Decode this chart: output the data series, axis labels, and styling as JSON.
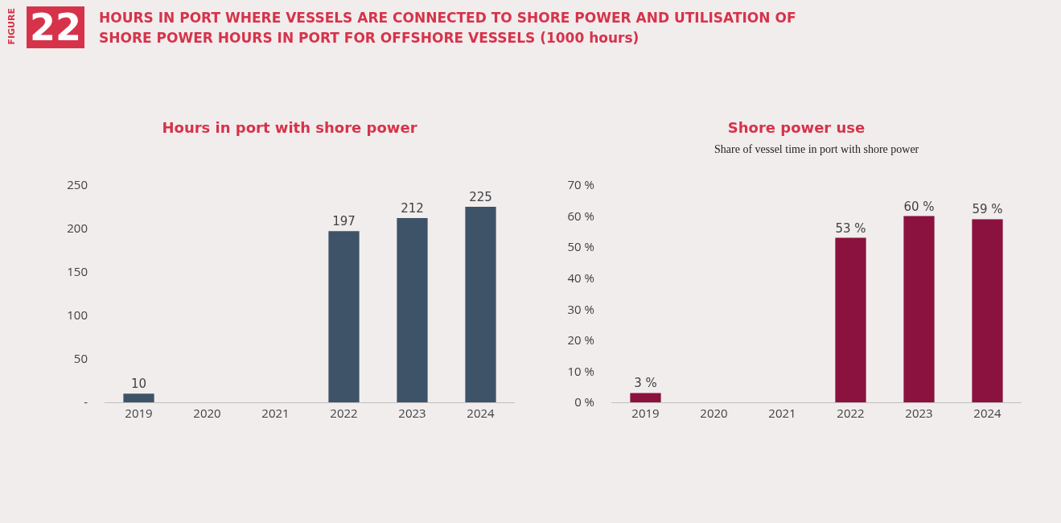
{
  "chart_data": [
    {
      "type": "bar",
      "title": "Hours in port with shore power",
      "annotations": [
        "FIGURE",
        "22",
        "HOURS IN PORT WHERE VESSELS ARE CONNECTED TO SHORE POWER AND UTILISATION OF SHORE POWER HOURS IN PORT FOR OFFSHORE VESSELS (1000 hours)"
      ],
      "categories": [
        "2019",
        "2020",
        "2021",
        "2022",
        "2023",
        "2024"
      ],
      "values": [
        10,
        null,
        null,
        197,
        212,
        225
      ],
      "color": "#3e5368",
      "data_labels": true,
      "ylim": [
        0,
        250
      ],
      "yticks": [
        {
          "value": 0,
          "label": "-"
        },
        50,
        100,
        150,
        200,
        250
      ]
    },
    {
      "type": "bar",
      "title": "Shore power use",
      "subtitle": "Share of vessel time in port with shore power",
      "categories": [
        "2019",
        "2020",
        "2021",
        "2022",
        "2023",
        "2024"
      ],
      "values": [
        3,
        null,
        null,
        53,
        60,
        59
      ],
      "value_labels": [
        "3 %",
        null,
        null,
        "53 %",
        "60 %",
        "59 %"
      ],
      "color": "#8b113e",
      "ylim": [
        0,
        70
      ],
      "yticks": [
        {
          "value": 0,
          "label": "0 %"
        },
        {
          "value": 10,
          "label": "10 %"
        },
        {
          "value": 20,
          "label": "20 %"
        },
        {
          "value": 30,
          "label": "30 %"
        },
        {
          "value": 40,
          "label": "40 %"
        },
        {
          "value": 50,
          "label": "50 %"
        },
        {
          "value": 60,
          "label": "60 %"
        },
        {
          "value": 70,
          "label": "70 %"
        }
      ]
    }
  ]
}
